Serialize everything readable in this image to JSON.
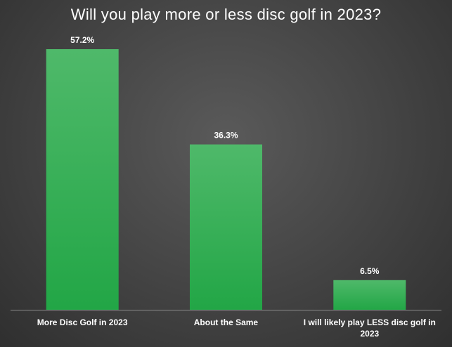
{
  "chart_data": {
    "type": "bar",
    "title": "Will you play more  or less disc golf in 2023?",
    "categories": [
      "More Disc Golf in 2023",
      "About the Same",
      "I will likely play LESS disc golf in 2023"
    ],
    "values": [
      57.2,
      36.3,
      6.5
    ],
    "data_labels": [
      "57.2%",
      "36.3%",
      "6.5%"
    ],
    "xlabel": "",
    "ylabel": "",
    "ylim": [
      0,
      60
    ],
    "grid": false,
    "legend": "none",
    "colors": {
      "bar_top": "#4fb96a",
      "bar_bottom": "#22a646",
      "axis": "#8a8a8a",
      "text": "#ffffff",
      "background": "#4a4a4a"
    }
  }
}
